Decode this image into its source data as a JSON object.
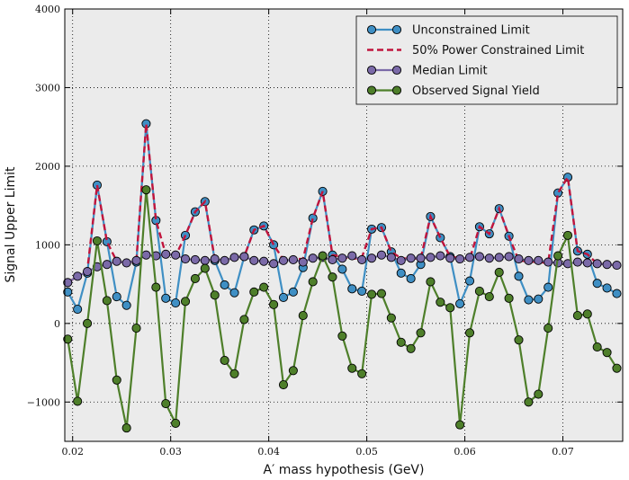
{
  "chart_data": {
    "type": "line",
    "title": "",
    "xlabel": "A′ mass hypothesis (GeV)",
    "ylabel": "Signal Upper Limit",
    "xlim": [
      0.0192,
      0.0761
    ],
    "ylim": [
      -1500,
      4000
    ],
    "x_ticks": [
      "0.02",
      "0.03",
      "0.04",
      "0.05",
      "0.06",
      "0.07"
    ],
    "x_tick_values": [
      0.02,
      0.03,
      0.04,
      0.05,
      0.06,
      0.07
    ],
    "y_ticks": [
      "−1000",
      "0",
      "1000",
      "2000",
      "3000",
      "4000"
    ],
    "y_tick_values": [
      -1000,
      0,
      1000,
      2000,
      3000,
      4000
    ],
    "grid": true,
    "legend_position": "top-right",
    "x": [
      0.0195,
      0.0205,
      0.0215,
      0.0225,
      0.0235,
      0.0245,
      0.0255,
      0.0265,
      0.0275,
      0.0285,
      0.0295,
      0.0305,
      0.0315,
      0.0325,
      0.0335,
      0.0345,
      0.0355,
      0.0365,
      0.0375,
      0.0385,
      0.0395,
      0.0405,
      0.0415,
      0.0425,
      0.0435,
      0.0445,
      0.0455,
      0.0465,
      0.0475,
      0.0485,
      0.0495,
      0.0505,
      0.0515,
      0.0525,
      0.0535,
      0.0545,
      0.0555,
      0.0565,
      0.0575,
      0.0585,
      0.0595,
      0.0605,
      0.0615,
      0.0625,
      0.0635,
      0.0645,
      0.0655,
      0.0665,
      0.0675,
      0.0685,
      0.0695,
      0.0705,
      0.0715,
      0.0725,
      0.0735,
      0.0745,
      0.0755
    ],
    "series": [
      {
        "name": "Unconstrained Limit",
        "style": "line-marker",
        "color": "#3f8fc4",
        "values": [
          400,
          180,
          640,
          1760,
          1040,
          340,
          230,
          780,
          2540,
          1310,
          320,
          260,
          1120,
          1420,
          1550,
          800,
          490,
          390,
          850,
          1190,
          1240,
          1000,
          330,
          400,
          710,
          1340,
          1680,
          870,
          690,
          440,
          410,
          1200,
          1220,
          910,
          640,
          570,
          750,
          1360,
          1090,
          850,
          250,
          540,
          1230,
          1140,
          1460,
          1110,
          600,
          300,
          310,
          460,
          1660,
          1860,
          920,
          880,
          510,
          450,
          380
        ]
      },
      {
        "name": "50% Power Constrained Limit",
        "style": "dashed",
        "color": "#c0143c",
        "values": [
          520,
          600,
          680,
          1760,
          1040,
          790,
          770,
          800,
          2540,
          1310,
          880,
          860,
          1120,
          1420,
          1550,
          820,
          800,
          840,
          850,
          1190,
          1240,
          1000,
          810,
          820,
          820,
          1340,
          1680,
          870,
          850,
          820,
          840,
          1200,
          1220,
          910,
          830,
          820,
          830,
          1360,
          1090,
          850,
          830,
          820,
          1230,
          1140,
          1460,
          1110,
          800,
          790,
          780,
          770,
          1660,
          1860,
          920,
          880,
          760,
          750,
          740
        ]
      },
      {
        "name": "Median Limit",
        "style": "line-marker",
        "color": "#7b6aa8",
        "values": [
          520,
          600,
          660,
          720,
          750,
          790,
          770,
          800,
          870,
          860,
          880,
          870,
          820,
          810,
          800,
          820,
          800,
          840,
          850,
          800,
          790,
          760,
          800,
          810,
          780,
          830,
          840,
          810,
          830,
          860,
          810,
          830,
          870,
          840,
          800,
          830,
          830,
          840,
          860,
          830,
          820,
          840,
          850,
          830,
          840,
          850,
          820,
          800,
          800,
          780,
          770,
          760,
          780,
          770,
          760,
          750,
          740
        ]
      },
      {
        "name": "Observed Signal Yield",
        "style": "line-marker",
        "color": "#4e7f2a",
        "values": [
          -200,
          -990,
          0,
          1050,
          290,
          -720,
          -1330,
          -60,
          1700,
          460,
          -1020,
          -1270,
          280,
          570,
          700,
          360,
          -470,
          -640,
          50,
          400,
          460,
          240,
          -780,
          -600,
          100,
          530,
          860,
          590,
          -160,
          -570,
          -640,
          370,
          380,
          70,
          -240,
          -320,
          -120,
          530,
          270,
          200,
          -1290,
          -120,
          410,
          340,
          650,
          320,
          -210,
          -1000,
          -900,
          -60,
          860,
          1120,
          100,
          120,
          -300,
          -370,
          -570
        ]
      }
    ]
  }
}
